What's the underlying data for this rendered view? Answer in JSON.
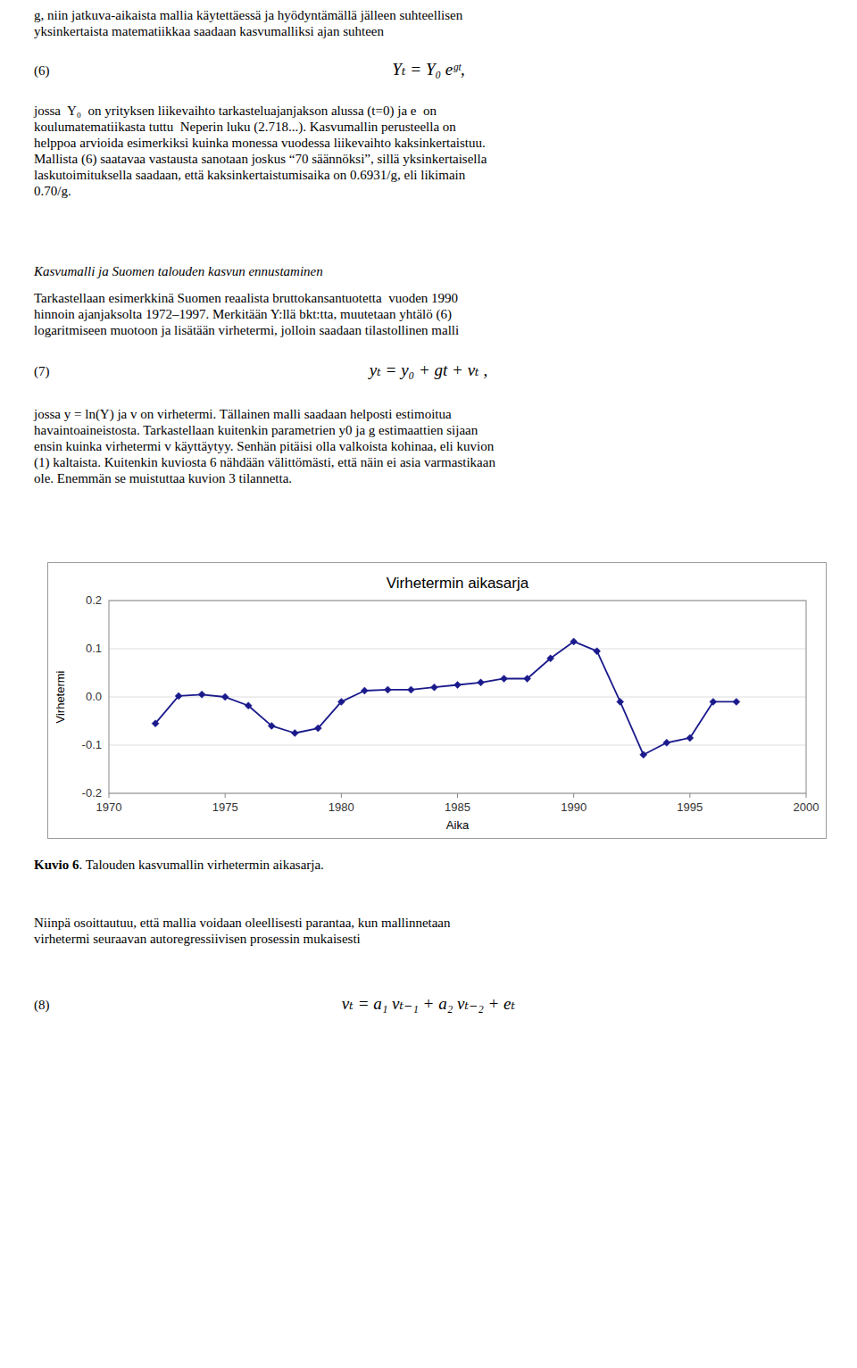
{
  "page": {
    "intro": [
      "g, niin jatkuva-aikaista mallia käytettäessä ja hyödyntämällä jälleen suhteellisen",
      "yksinkertaista matematiikkaa saadaan kasvumalliksi ajan suhteen"
    ],
    "eq6_label": "(6)",
    "eq6": "Yₜ = Y₀ eᵍᵗ,",
    "para1": [
      "jossa  Y₀  on yrityksen liikevaihto tarkasteluajanjakson alussa (t=0) ja e  on",
      "koulumatematiikasta tuttu  Neperin luku (2.718...). Kasvumallin perusteella on",
      "helppoa arvioida esimerkiksi kuinka monessa vuodessa liikevaihto kaksinkertaistuu.",
      "Mallista (6) saatavaa vastausta sanotaan joskus “70 säännöksi”, sillä yksinkertaisella",
      "laskutoimituksella saadaan, että kaksinkertaistumisaika on 0.6931/g, eli likimain",
      "0.70/g."
    ],
    "heading": "Kasvumalli ja Suomen talouden kasvun ennustaminen",
    "para2": [
      "Tarkastellaan esimerkkinä Suomen reaalista bruttokansantuotetta  vuoden 1990",
      "hinnoin ajanjaksolta 1972–1997. Merkitään Y:llä bkt:tta, muutetaan yhtälö (6)",
      "logaritmiseen muotoon ja lisätään virhetermi, jolloin saadaan tilastollinen malli"
    ],
    "eq7_label": "(7)",
    "eq7": "yₜ = y₀ + gt + vₜ ,",
    "para3": [
      "jossa y = ln(Y) ja v on virhetermi. Tällainen malli saadaan helposti estimoitua",
      "havaintoaineistosta. Tarkastellaan kuitenkin parametrien y0 ja g estimaattien sijaan",
      "ensin kuinka virhetermi v käyttäytyy. Senhän pitäisi olla valkoista kohinaa, eli kuvion",
      "(1) kaltaista. Kuitenkin kuviosta 6 nähdään välittömästi, että näin ei asia varmastikaan",
      "ole. Enemmän se muistuttaa kuvion 3 tilannetta."
    ],
    "caption_label": "Kuvio 6",
    "caption": ". Talouden kasvumallin virhetermin aikasarja.",
    "para4": [
      "Niinpä osoittautuu, että mallia voidaan oleellisesti parantaa, kun mallinnetaan",
      "virhetermi seuraavan autoregressiivisen prosessin mukaisesti"
    ],
    "eq8_label": "(8)",
    "eq8": "vₜ = a₁ vₜ₋₁ + a₂ vₜ₋₂ + eₜ"
  },
  "chart_data": {
    "type": "line",
    "title": "Virhetermin aikasarja",
    "x_label": "Aika",
    "y_label": "Virhetermi",
    "x": [
      1972,
      1973,
      1974,
      1975,
      1976,
      1977,
      1978,
      1979,
      1980,
      1981,
      1982,
      1983,
      1984,
      1985,
      1986,
      1987,
      1988,
      1989,
      1990,
      1991,
      1992,
      1993,
      1994,
      1995,
      1996,
      1997
    ],
    "values": [
      -0.055,
      0.002,
      0.005,
      0.0,
      -0.018,
      -0.06,
      -0.075,
      -0.065,
      -0.01,
      0.013,
      0.015,
      0.015,
      0.02,
      0.025,
      0.03,
      0.038,
      0.038,
      0.08,
      0.115,
      0.095,
      -0.01,
      -0.12,
      -0.095,
      -0.085,
      -0.01,
      -0.01
    ],
    "color": "#1a1a8c",
    "marker": "diamond",
    "xlim": [
      1970,
      2000
    ],
    "ylim": [
      -0.2,
      0.2
    ],
    "xticks": [
      1970,
      1975,
      1980,
      1985,
      1990,
      1995,
      2000
    ],
    "yticks": [
      -0.2,
      -0.1,
      {
        "value": 0,
        "label": "0.0"
      },
      0.1,
      0.2
    ],
    "grid": true
  }
}
